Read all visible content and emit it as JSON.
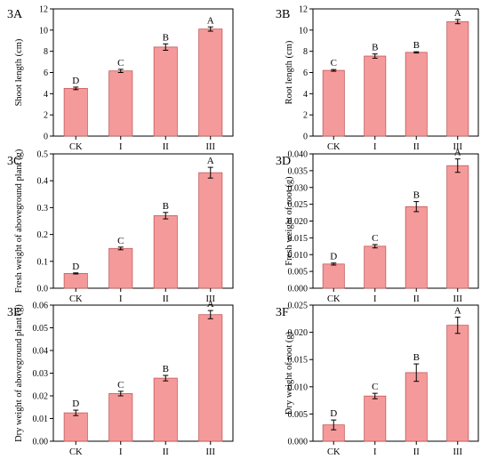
{
  "colors": {
    "bar_fill": "#f59a9a",
    "bar_stroke": "#c45a5a",
    "axis": "#000000"
  },
  "chart_data": [
    {
      "id": "3A",
      "type": "bar",
      "label": "3A",
      "categories": [
        "CK",
        "I",
        "II",
        "III"
      ],
      "values": [
        4.5,
        6.15,
        8.4,
        10.1
      ],
      "errors": [
        0.12,
        0.15,
        0.3,
        0.2
      ],
      "letters": [
        "D",
        "C",
        "B",
        "A"
      ],
      "ylabel": "Shoot length (cm)",
      "ylim": [
        0,
        12
      ],
      "yticks": [
        0,
        2,
        4,
        6,
        8,
        10,
        12
      ],
      "ytick_labels": [
        "0",
        "2",
        "4",
        "6",
        "8",
        "10",
        "12"
      ]
    },
    {
      "id": "3B",
      "type": "bar",
      "label": "3B",
      "categories": [
        "CK",
        "I",
        "II",
        "III"
      ],
      "values": [
        6.2,
        7.55,
        7.9,
        10.8
      ],
      "errors": [
        0.08,
        0.2,
        0.06,
        0.2
      ],
      "letters": [
        "C",
        "B",
        "B",
        "A"
      ],
      "ylabel": "Root length (cm)",
      "ylim": [
        0,
        12
      ],
      "yticks": [
        0,
        2,
        4,
        6,
        8,
        10,
        12
      ],
      "ytick_labels": [
        "0",
        "2",
        "4",
        "6",
        "8",
        "10",
        "12"
      ]
    },
    {
      "id": "3C",
      "type": "bar",
      "label": "3C",
      "categories": [
        "CK",
        "I",
        "II",
        "III"
      ],
      "values": [
        0.055,
        0.148,
        0.27,
        0.43
      ],
      "errors": [
        0.002,
        0.005,
        0.012,
        0.02
      ],
      "letters": [
        "D",
        "C",
        "B",
        "A"
      ],
      "ylabel": "Fresh weight of aboveground plant (g)",
      "ylim": [
        0,
        0.5
      ],
      "yticks": [
        0,
        0.1,
        0.2,
        0.3,
        0.4,
        0.5
      ],
      "ytick_labels": [
        "0.0",
        "0.1",
        "0.2",
        "0.3",
        "0.4",
        "0.5"
      ]
    },
    {
      "id": "3D",
      "type": "bar",
      "label": "3D",
      "categories": [
        "CK",
        "I",
        "II",
        "III"
      ],
      "values": [
        0.0072,
        0.0125,
        0.0243,
        0.0365
      ],
      "errors": [
        0.0003,
        0.0005,
        0.0015,
        0.002
      ],
      "letters": [
        "D",
        "C",
        "B",
        "A"
      ],
      "ylabel": "Fresh weight of root (g)",
      "ylim": [
        0,
        0.04
      ],
      "yticks": [
        0,
        0.005,
        0.01,
        0.015,
        0.02,
        0.025,
        0.03,
        0.035,
        0.04
      ],
      "ytick_labels": [
        "0.000",
        "0.005",
        "0.010",
        "0.015",
        "0.020",
        "0.025",
        "0.030",
        "0.035",
        "0.040"
      ]
    },
    {
      "id": "3E",
      "type": "bar",
      "label": "3E",
      "categories": [
        "CK",
        "I",
        "II",
        "III"
      ],
      "values": [
        0.0125,
        0.021,
        0.0278,
        0.0558
      ],
      "errors": [
        0.0012,
        0.001,
        0.0012,
        0.0018
      ],
      "letters": [
        "D",
        "C",
        "B",
        "A"
      ],
      "ylabel": "Dry weight of aboveground plant (g)",
      "ylim": [
        0,
        0.06
      ],
      "yticks": [
        0,
        0.01,
        0.02,
        0.03,
        0.04,
        0.05,
        0.06
      ],
      "ytick_labels": [
        "0.00",
        "0.01",
        "0.02",
        "0.03",
        "0.04",
        "0.05",
        "0.06"
      ]
    },
    {
      "id": "3F",
      "type": "bar",
      "label": "3F",
      "categories": [
        "CK",
        "I",
        "II",
        "III"
      ],
      "values": [
        0.003,
        0.0083,
        0.0126,
        0.0213
      ],
      "errors": [
        0.0009,
        0.0005,
        0.0016,
        0.0015
      ],
      "letters": [
        "D",
        "C",
        "B",
        "A"
      ],
      "ylabel": "Dry weight of root (g)",
      "ylim": [
        0,
        0.025
      ],
      "yticks": [
        0,
        0.005,
        0.01,
        0.015,
        0.02,
        0.025
      ],
      "ytick_labels": [
        "0.000",
        "0.005",
        "0.010",
        "0.015",
        "0.020",
        "0.025"
      ]
    }
  ]
}
